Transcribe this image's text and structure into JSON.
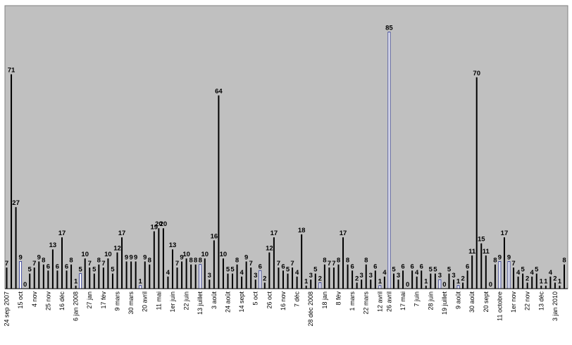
{
  "chart_data": {
    "type": "bar",
    "title": "",
    "xlabel": "",
    "ylabel": "",
    "ylim": [
      0,
      90
    ],
    "grid": false,
    "legend": "none",
    "colors": {
      "plot_background": "#c0c0c0",
      "bar": "#000000",
      "highlight_bar": "#1e2a8c",
      "highlight_fill": "#ffffff"
    },
    "values": [
      7,
      71,
      27,
      9,
      0,
      5,
      7,
      9,
      8,
      6,
      13,
      6,
      17,
      6,
      8,
      1,
      5,
      10,
      7,
      5,
      8,
      7,
      10,
      5,
      12,
      17,
      9,
      9,
      9,
      1,
      9,
      8,
      19,
      20,
      20,
      4,
      13,
      7,
      9,
      10,
      8,
      8,
      8,
      10,
      3,
      16,
      64,
      10,
      5,
      5,
      8,
      4,
      9,
      7,
      3,
      6,
      2,
      12,
      17,
      7,
      6,
      5,
      7,
      4,
      18,
      1,
      3,
      5,
      2,
      8,
      7,
      7,
      8,
      17,
      8,
      6,
      2,
      3,
      8,
      3,
      6,
      1,
      4,
      85,
      5,
      3,
      6,
      0,
      6,
      4,
      6,
      1,
      5,
      5,
      3,
      0,
      5,
      3,
      1,
      2,
      6,
      11,
      70,
      15,
      11,
      0,
      8,
      9,
      17,
      9,
      7,
      4,
      5,
      2,
      4,
      5,
      1,
      1,
      4,
      2,
      1,
      8
    ],
    "highlighted_indices": [
      3,
      16,
      29,
      42,
      55,
      68,
      81,
      83,
      94,
      98,
      107,
      109
    ],
    "x_tick_labels": [
      {
        "label": "24 sep 2007",
        "at": 0
      },
      {
        "label": "15 oct",
        "at": 3
      },
      {
        "label": "4 nov",
        "at": 6
      },
      {
        "label": "25 nov",
        "at": 9
      },
      {
        "label": "16 déc",
        "at": 12
      },
      {
        "label": "6 jan 2008",
        "at": 15
      },
      {
        "label": "27 jan",
        "at": 18
      },
      {
        "label": "17 fév",
        "at": 21
      },
      {
        "label": "9 mars",
        "at": 24
      },
      {
        "label": "30 mars",
        "at": 27
      },
      {
        "label": "20 avril",
        "at": 30
      },
      {
        "label": "11 mai",
        "at": 33
      },
      {
        "label": "1er juin",
        "at": 36
      },
      {
        "label": "22 juin",
        "at": 39
      },
      {
        "label": "13 juillet",
        "at": 42
      },
      {
        "label": "3 août",
        "at": 45
      },
      {
        "label": "24 août",
        "at": 48
      },
      {
        "label": "14 sept",
        "at": 51
      },
      {
        "label": "5 oct",
        "at": 54
      },
      {
        "label": "26 oct",
        "at": 57
      },
      {
        "label": "16 nov",
        "at": 60
      },
      {
        "label": "7 déc",
        "at": 63
      },
      {
        "label": "28 déc 2008",
        "at": 66
      },
      {
        "label": "18 jan",
        "at": 69
      },
      {
        "label": "8 fév",
        "at": 72
      },
      {
        "label": "1 mars",
        "at": 75
      },
      {
        "label": "22 mars",
        "at": 78
      },
      {
        "label": "12 avril",
        "at": 81
      },
      {
        "label": "26 avril",
        "at": 83
      },
      {
        "label": "17 mai",
        "at": 86
      },
      {
        "label": "7 juin",
        "at": 89
      },
      {
        "label": "28 juin",
        "at": 92
      },
      {
        "label": "19 juillet",
        "at": 95
      },
      {
        "label": "9 août",
        "at": 98
      },
      {
        "label": "30 août",
        "at": 101
      },
      {
        "label": "20 sept",
        "at": 104
      },
      {
        "label": "11 octobre",
        "at": 107
      },
      {
        "label": "1er nov",
        "at": 110
      },
      {
        "label": "22 nov",
        "at": 113
      },
      {
        "label": "13 déc",
        "at": 116
      },
      {
        "label": "3 jan 2010",
        "at": 119
      }
    ]
  }
}
